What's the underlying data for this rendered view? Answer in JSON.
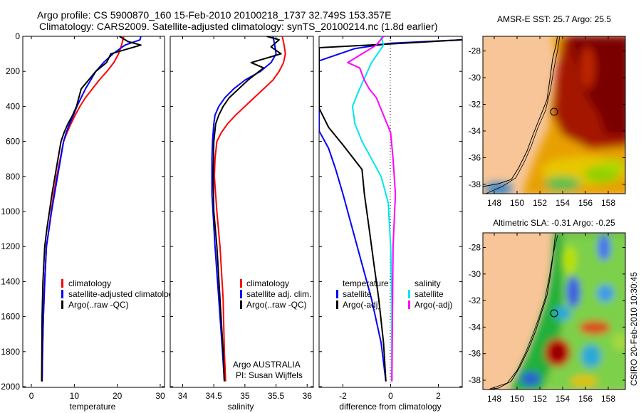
{
  "header": {
    "line1": "Argo profile: CS 5900870_160 15-Feb-2010 20100218_1737 32.749S 153.357E",
    "line2": "Climatology: CARS2009. Satellite-adjusted climatology: synTS_20100214.nc (1.8d earlier)"
  },
  "side_stamp": "CSIRO  20-Feb-2010 10:30:45",
  "credit": {
    "line1": "Argo AUSTRALIA",
    "line2": "PI: Susan Wijffels"
  },
  "colors": {
    "climatology": "#ff0000",
    "satellite": "#0000ff",
    "argo": "#000000",
    "salinity_satellite": "#00e5ee",
    "salinity_argo": "#ff00ff",
    "land": "#f7c597"
  },
  "chart_data": [
    {
      "type": "line",
      "panel": "temperature",
      "xlabel": "temperature",
      "ylabel": "",
      "xlim": [
        -2,
        31
      ],
      "ylim": [
        2000,
        0
      ],
      "xticks": [
        0,
        10,
        20,
        30
      ],
      "yticks": [
        0,
        200,
        400,
        600,
        800,
        1000,
        1200,
        1400,
        1600,
        1800,
        2000
      ],
      "legend": [
        "climatology",
        "satellite-adjusted climatology",
        "Argo(..raw -QC)"
      ],
      "series": [
        {
          "name": "climatology",
          "color": "#ff0000",
          "x": [
            21.5,
            21.0,
            20.3,
            19.2,
            17.6,
            15.8,
            14.2,
            12.6,
            11.3,
            10.2,
            9.2,
            8.3,
            7.5,
            6.7,
            5.9,
            5.2,
            4.6,
            4.1,
            3.5,
            3.1,
            2.8,
            2.6,
            2.5
          ],
          "y": [
            0,
            50,
            100,
            150,
            200,
            250,
            300,
            350,
            400,
            450,
            500,
            550,
            600,
            700,
            800,
            900,
            1000,
            1100,
            1200,
            1400,
            1600,
            1800,
            1970
          ]
        },
        {
          "name": "satellite-adjusted climatology",
          "color": "#0000ff",
          "x": [
            25.5,
            25.3,
            21.8,
            19.0,
            16.8,
            15.0,
            13.8,
            12.6,
            11.6,
            10.6,
            9.8,
            8.9,
            8.1,
            7.5,
            6.8,
            6.1,
            5.4,
            4.7,
            4.1,
            3.5,
            3.1,
            2.8,
            2.6,
            2.5
          ],
          "y": [
            0,
            20,
            50,
            100,
            150,
            200,
            250,
            300,
            350,
            400,
            450,
            500,
            550,
            600,
            700,
            800,
            900,
            1000,
            1100,
            1200,
            1400,
            1600,
            1800,
            1970
          ]
        },
        {
          "name": "Argo(..raw -QC)",
          "color": "#000000",
          "x": [
            20.5,
            22.5,
            25.5,
            18.5,
            17.5,
            15.0,
            13.3,
            11.6,
            10.5,
            9.6,
            8.5,
            7.6,
            6.9,
            6.2,
            5.5,
            4.8,
            4.2,
            3.6,
            3.1,
            2.7,
            2.5,
            2.4
          ],
          "y": [
            0,
            30,
            50,
            100,
            150,
            200,
            250,
            300,
            400,
            450,
            500,
            550,
            600,
            700,
            800,
            900,
            1000,
            1100,
            1200,
            1400,
            1600,
            1970
          ]
        }
      ]
    },
    {
      "type": "line",
      "panel": "salinity",
      "xlabel": "salinity",
      "ylabel": "",
      "xlim": [
        33.8,
        36.1
      ],
      "ylim": [
        2000,
        0
      ],
      "xticks": [
        34,
        34.5,
        35,
        35.5,
        36
      ],
      "legend": [
        "climatology",
        "satellite adj. clim.",
        "Argo(..raw -QC)"
      ],
      "series": [
        {
          "name": "climatology",
          "color": "#ff0000",
          "x": [
            35.6,
            35.63,
            35.65,
            35.62,
            35.55,
            35.45,
            35.3,
            35.15,
            35.0,
            34.85,
            34.72,
            34.62,
            34.55,
            34.52,
            34.51,
            34.55,
            34.6,
            34.65,
            34.67,
            34.69
          ],
          "y": [
            0,
            50,
            100,
            150,
            200,
            250,
            300,
            350,
            400,
            450,
            500,
            550,
            600,
            700,
            800,
            1000,
            1200,
            1500,
            1800,
            1970
          ]
        },
        {
          "name": "satellite adj. clim.",
          "color": "#0000ff",
          "x": [
            35.45,
            35.48,
            35.5,
            35.42,
            35.25,
            35.0,
            34.82,
            34.68,
            34.58,
            34.52,
            34.5,
            34.48,
            34.47,
            34.47,
            34.52,
            34.58,
            34.64,
            34.67
          ],
          "y": [
            0,
            50,
            100,
            150,
            200,
            250,
            300,
            350,
            400,
            450,
            500,
            600,
            700,
            900,
            1200,
            1500,
            1800,
            1970
          ]
        },
        {
          "name": "Argo(..raw -QC)",
          "color": "#000000",
          "x": [
            35.35,
            35.55,
            35.42,
            35.58,
            35.1,
            35.3,
            35.05,
            34.9,
            34.75,
            34.65,
            34.58,
            34.53,
            34.5,
            34.49,
            34.5,
            34.55,
            34.6,
            34.65,
            34.67
          ],
          "y": [
            0,
            20,
            60,
            100,
            150,
            180,
            250,
            300,
            350,
            400,
            450,
            500,
            600,
            800,
            1000,
            1200,
            1500,
            1800,
            1970
          ]
        }
      ]
    },
    {
      "type": "line",
      "panel": "difference",
      "xlabel": "difference from climatology",
      "ylabel": "",
      "xlim": [
        -3,
        3
      ],
      "ylim": [
        2000,
        0
      ],
      "xticks": [
        -2,
        0,
        2
      ],
      "legend_temperature": [
        "temperature",
        "satellite",
        "Argo(-adj)"
      ],
      "legend_salinity": [
        "salinity",
        "satellite",
        "Argo(-adj)"
      ],
      "series": [
        {
          "name": "temperature satellite",
          "color": "#0000ff",
          "x": [
            3.0,
            0.0,
            -1.5,
            -3.0,
            -3.0,
            -2.6,
            -2.3,
            -2.0,
            -1.6,
            -1.2,
            -0.8,
            -0.4,
            -0.2
          ],
          "y": [
            20,
            40,
            70,
            140,
            540,
            640,
            760,
            900,
            1100,
            1300,
            1500,
            1750,
            1970
          ]
        },
        {
          "name": "temperature Argo(-adj)",
          "color": "#000000",
          "x": [
            3.0,
            0.5,
            -3.0,
            -3.0,
            -2.6,
            -2.0,
            -1.2,
            -1.1,
            -0.9,
            -0.7,
            -0.5,
            -0.3,
            -0.2
          ],
          "y": [
            20,
            40,
            65,
            410,
            520,
            620,
            760,
            900,
            1100,
            1300,
            1500,
            1750,
            1970
          ]
        },
        {
          "name": "salinity satellite",
          "color": "#00e5ee",
          "x": [
            -0.4,
            -0.3,
            -0.8,
            -1.3,
            -1.6,
            -1.5,
            -1.2,
            -0.8,
            -0.4,
            -0.1,
            0.0,
            0.05,
            0.05
          ],
          "y": [
            0,
            50,
            150,
            300,
            400,
            500,
            600,
            700,
            800,
            950,
            1200,
            1500,
            1970
          ]
        },
        {
          "name": "salinity Argo(-adj)",
          "color": "#ff00ff",
          "x": [
            -0.3,
            -0.6,
            -1.8,
            -1.3,
            -1.1,
            -0.9,
            -0.6,
            -0.3,
            0.0,
            0.1,
            0.2,
            0.1,
            0.05
          ],
          "y": [
            0,
            50,
            150,
            180,
            250,
            300,
            350,
            450,
            550,
            700,
            900,
            1200,
            1970
          ]
        }
      ]
    },
    {
      "type": "heatmap",
      "panel": "map-sst",
      "title": "AMSR-E SST: 25.7 Argo: 25.5",
      "xlim": [
        147,
        159.5
      ],
      "ylim": [
        -38.7,
        -26.9
      ],
      "xticks": [
        148,
        150,
        152,
        154,
        156,
        158
      ],
      "yticks": [
        -28,
        -30,
        -32,
        -34,
        -36,
        -38
      ],
      "marker": [
        153.357,
        -32.749
      ]
    },
    {
      "type": "heatmap",
      "panel": "map-sla",
      "title": "Altimetric SLA: -0.31 Argo: -0.25",
      "xlim": [
        147,
        159.5
      ],
      "ylim": [
        -38.7,
        -26.9
      ],
      "xticks": [
        148,
        150,
        152,
        154,
        156,
        158
      ],
      "yticks": [
        -28,
        -30,
        -32,
        -34,
        -36,
        -38
      ],
      "marker": [
        153.357,
        -32.749
      ]
    }
  ]
}
